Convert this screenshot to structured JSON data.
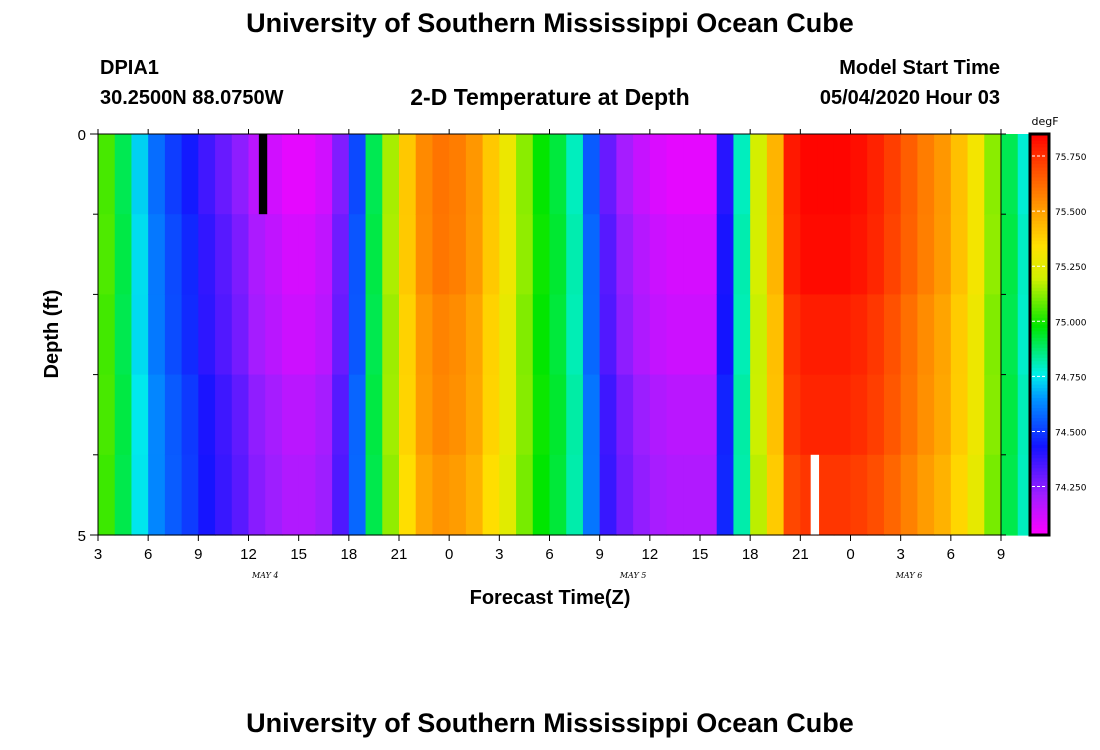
{
  "header": {
    "title_top": "University of Southern Mississippi Ocean Cube",
    "station": "DPIA1",
    "coords": "30.2500N 88.0750W",
    "subtitle": "2-D Temperature at Depth",
    "model_start_label": "Model Start Time",
    "model_start_value": "05/04/2020 Hour 03",
    "title_bottom": "University of Southern Mississippi Ocean Cube"
  },
  "chart_data": {
    "type": "heatmap",
    "title": "2-D Temperature at Depth",
    "xlabel": "Forecast Time(Z)",
    "ylabel": "Depth (ft)",
    "ylim": [
      0,
      5
    ],
    "y_tick_labels": [
      "0",
      "5"
    ],
    "x_tick_labels": [
      "3",
      "6",
      "9",
      "12",
      "15",
      "18",
      "21",
      "0",
      "3",
      "6",
      "9",
      "12",
      "15",
      "18",
      "21",
      "0",
      "3",
      "6",
      "9"
    ],
    "date_labels": [
      {
        "text": "MAY 4",
        "hour_index": 10
      },
      {
        "text": "MAY 5",
        "hour_index": 32
      },
      {
        "text": "MAY 6",
        "hour_index": 48.5
      }
    ],
    "forecast_hours_start": 3,
    "forecast_hours_end": 57,
    "depth_bins": 5,
    "colorbar": {
      "unit": "degF",
      "min": 74.03,
      "max": 75.85,
      "tick_values": [
        74.25,
        74.5,
        74.75,
        75.0,
        75.25,
        75.5,
        75.75
      ],
      "tick_labels": [
        "74.250",
        "74.500",
        "74.750",
        "75.000",
        "75.250",
        "75.500",
        "75.750"
      ]
    },
    "surface_temperature_hourly": [
      75.05,
      74.9,
      74.72,
      74.58,
      74.5,
      74.44,
      74.36,
      74.3,
      74.24,
      74.16,
      74.12,
      74.08,
      74.08,
      74.12,
      74.26,
      74.52,
      74.9,
      75.15,
      75.4,
      75.55,
      75.6,
      75.58,
      75.52,
      75.4,
      75.28,
      75.12,
      74.98,
      74.92,
      74.8,
      74.55,
      74.3,
      74.2,
      74.14,
      74.1,
      74.08,
      74.08,
      74.08,
      74.4,
      74.8,
      75.2,
      75.45,
      75.8,
      75.84,
      75.84,
      75.84,
      75.82,
      75.78,
      75.72,
      75.65,
      75.58,
      75.52,
      75.42,
      75.3,
      75.12,
      74.9,
      74.78
    ],
    "depth_offsets_degF": [
      0.0,
      0.04,
      0.09,
      0.14,
      0.19
    ],
    "missing_cells": [
      {
        "hour_index": 9.5,
        "depth_bin": 0,
        "color": "#000000"
      },
      {
        "hour_index": 42.5,
        "depth_bin": 4,
        "color": "#ffffff"
      }
    ]
  }
}
